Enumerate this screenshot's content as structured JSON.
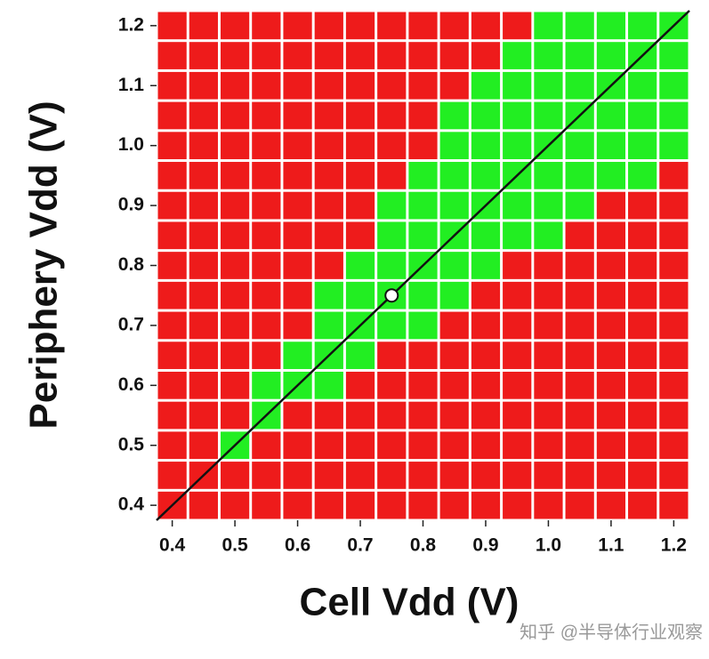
{
  "chart_data": {
    "type": "heatmap",
    "x_label": "Cell Vdd (V)",
    "y_label": "Periphery Vdd (V)",
    "x": [
      0.4,
      0.45,
      0.5,
      0.55,
      0.6,
      0.65,
      0.7,
      0.75,
      0.8,
      0.85,
      0.9,
      0.95,
      1.0,
      1.05,
      1.1,
      1.15,
      1.2
    ],
    "y": [
      0.4,
      0.45,
      0.5,
      0.55,
      0.6,
      0.65,
      0.7,
      0.75,
      0.8,
      0.85,
      0.9,
      0.95,
      1.0,
      1.05,
      1.1,
      1.15,
      1.2
    ],
    "values": [
      [
        0,
        0,
        0,
        0,
        0,
        0,
        0,
        0,
        0,
        0,
        0,
        0,
        0,
        0,
        0,
        0,
        0
      ],
      [
        0,
        0,
        0,
        0,
        0,
        0,
        0,
        0,
        0,
        0,
        0,
        0,
        0,
        0,
        0,
        0,
        0
      ],
      [
        0,
        0,
        1,
        0,
        0,
        0,
        0,
        0,
        0,
        0,
        0,
        0,
        0,
        0,
        0,
        0,
        0
      ],
      [
        0,
        0,
        0,
        1,
        0,
        0,
        0,
        0,
        0,
        0,
        0,
        0,
        0,
        0,
        0,
        0,
        0
      ],
      [
        0,
        0,
        0,
        1,
        1,
        1,
        0,
        0,
        0,
        0,
        0,
        0,
        0,
        0,
        0,
        0,
        0
      ],
      [
        0,
        0,
        0,
        0,
        1,
        1,
        1,
        0,
        0,
        0,
        0,
        0,
        0,
        0,
        0,
        0,
        0
      ],
      [
        0,
        0,
        0,
        0,
        0,
        1,
        1,
        1,
        1,
        0,
        0,
        0,
        0,
        0,
        0,
        0,
        0
      ],
      [
        0,
        0,
        0,
        0,
        0,
        1,
        1,
        1,
        1,
        1,
        0,
        0,
        0,
        0,
        0,
        0,
        0
      ],
      [
        0,
        0,
        0,
        0,
        0,
        0,
        1,
        1,
        1,
        1,
        1,
        0,
        0,
        0,
        0,
        0,
        0
      ],
      [
        0,
        0,
        0,
        0,
        0,
        0,
        0,
        1,
        1,
        1,
        1,
        1,
        1,
        0,
        0,
        0,
        0
      ],
      [
        0,
        0,
        0,
        0,
        0,
        0,
        0,
        1,
        1,
        1,
        1,
        1,
        1,
        1,
        0,
        0,
        0
      ],
      [
        0,
        0,
        0,
        0,
        0,
        0,
        0,
        0,
        1,
        1,
        1,
        1,
        1,
        1,
        1,
        1,
        0
      ],
      [
        0,
        0,
        0,
        0,
        0,
        0,
        0,
        0,
        0,
        1,
        1,
        1,
        1,
        1,
        1,
        1,
        1
      ],
      [
        0,
        0,
        0,
        0,
        0,
        0,
        0,
        0,
        0,
        1,
        1,
        1,
        1,
        1,
        1,
        1,
        1
      ],
      [
        0,
        0,
        0,
        0,
        0,
        0,
        0,
        0,
        0,
        0,
        1,
        1,
        1,
        1,
        1,
        1,
        1
      ],
      [
        0,
        0,
        0,
        0,
        0,
        0,
        0,
        0,
        0,
        0,
        0,
        1,
        1,
        1,
        1,
        1,
        1
      ],
      [
        0,
        0,
        0,
        0,
        0,
        0,
        0,
        0,
        0,
        0,
        0,
        0,
        1,
        1,
        1,
        1,
        1
      ]
    ],
    "colors": [
      "#ee1b1b",
      "#22ee22"
    ],
    "xlim": [
      0.375,
      1.225
    ],
    "ylim": [
      0.375,
      1.225
    ],
    "xticks": [
      0.4,
      0.5,
      0.6,
      0.7,
      0.8,
      0.9,
      {
        "value": 1,
        "label": "1.0"
      },
      1.1,
      1.2
    ],
    "yticks": [
      0.4,
      0.5,
      0.6,
      0.7,
      0.8,
      0.9,
      {
        "value": 1,
        "label": "1.0"
      },
      1.1,
      1.2
    ],
    "marker": {
      "x": 0.75,
      "y": 0.75
    },
    "watermark": "知乎 @半导体行业观察"
  }
}
